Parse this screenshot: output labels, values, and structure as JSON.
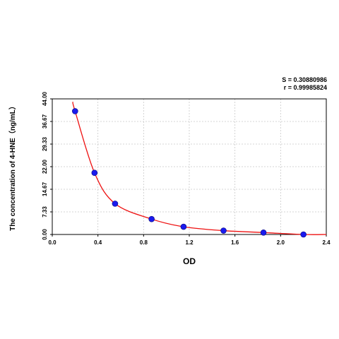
{
  "chart_data": {
    "type": "scatter",
    "stats": [
      "S = 0.30880986",
      "r = 0.99985824"
    ],
    "xlabel": "OD",
    "ylabel": "The concentration of 4-HNE（ng/mL）",
    "xlim": [
      0.0,
      2.4
    ],
    "ylim": [
      0.0,
      44.0
    ],
    "x_ticks": [
      "0.0",
      "0.4",
      "0.8",
      "1.2",
      "1.6",
      "2.0",
      "2.4"
    ],
    "y_ticks": [
      "0.00",
      "7.33",
      "14.67",
      "22.00",
      "29.33",
      "36.67",
      "44.00"
    ],
    "grid": true,
    "series": [
      {
        "points": [
          {
            "x": 0.2,
            "y": 40.0
          },
          {
            "x": 0.37,
            "y": 20.0
          },
          {
            "x": 0.55,
            "y": 10.0
          },
          {
            "x": 0.87,
            "y": 5.0
          },
          {
            "x": 1.15,
            "y": 2.5
          },
          {
            "x": 1.5,
            "y": 1.25
          },
          {
            "x": 1.85,
            "y": 0.625
          },
          {
            "x": 2.2,
            "y": 0.0
          }
        ],
        "fit_curve": {
          "x_range": [
            0.18,
            2.4
          ]
        },
        "colors": {
          "point": "#1a1aee",
          "curve": "#ee1111"
        }
      }
    ]
  }
}
